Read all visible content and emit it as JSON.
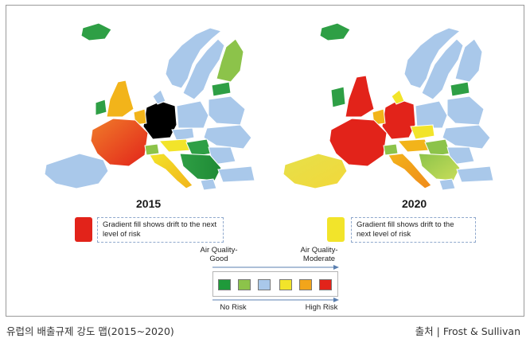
{
  "maps": [
    {
      "year": "2015",
      "note": "Gradient fill shows  drift to the next level of risk",
      "swatch_color": "#e2231a"
    },
    {
      "year": "2020",
      "note": "Gradient fill shows  drift to the next level of risk",
      "swatch_color": "#f2e42a"
    }
  ],
  "scale": {
    "top_left": "Air Quality-\nGood",
    "top_right": "Air Quality-\nModerate",
    "bottom_left": "No Risk",
    "bottom_right": "High Risk",
    "colors": [
      "#1f9a3a",
      "#8cc34a",
      "#a9c8ea",
      "#f2e42a",
      "#f2a51a",
      "#e2231a"
    ]
  },
  "caption": {
    "left": "유럽의 배출규제 강도 맵(2015~2020)",
    "right": "출처 | Frost & Sullivan"
  }
}
